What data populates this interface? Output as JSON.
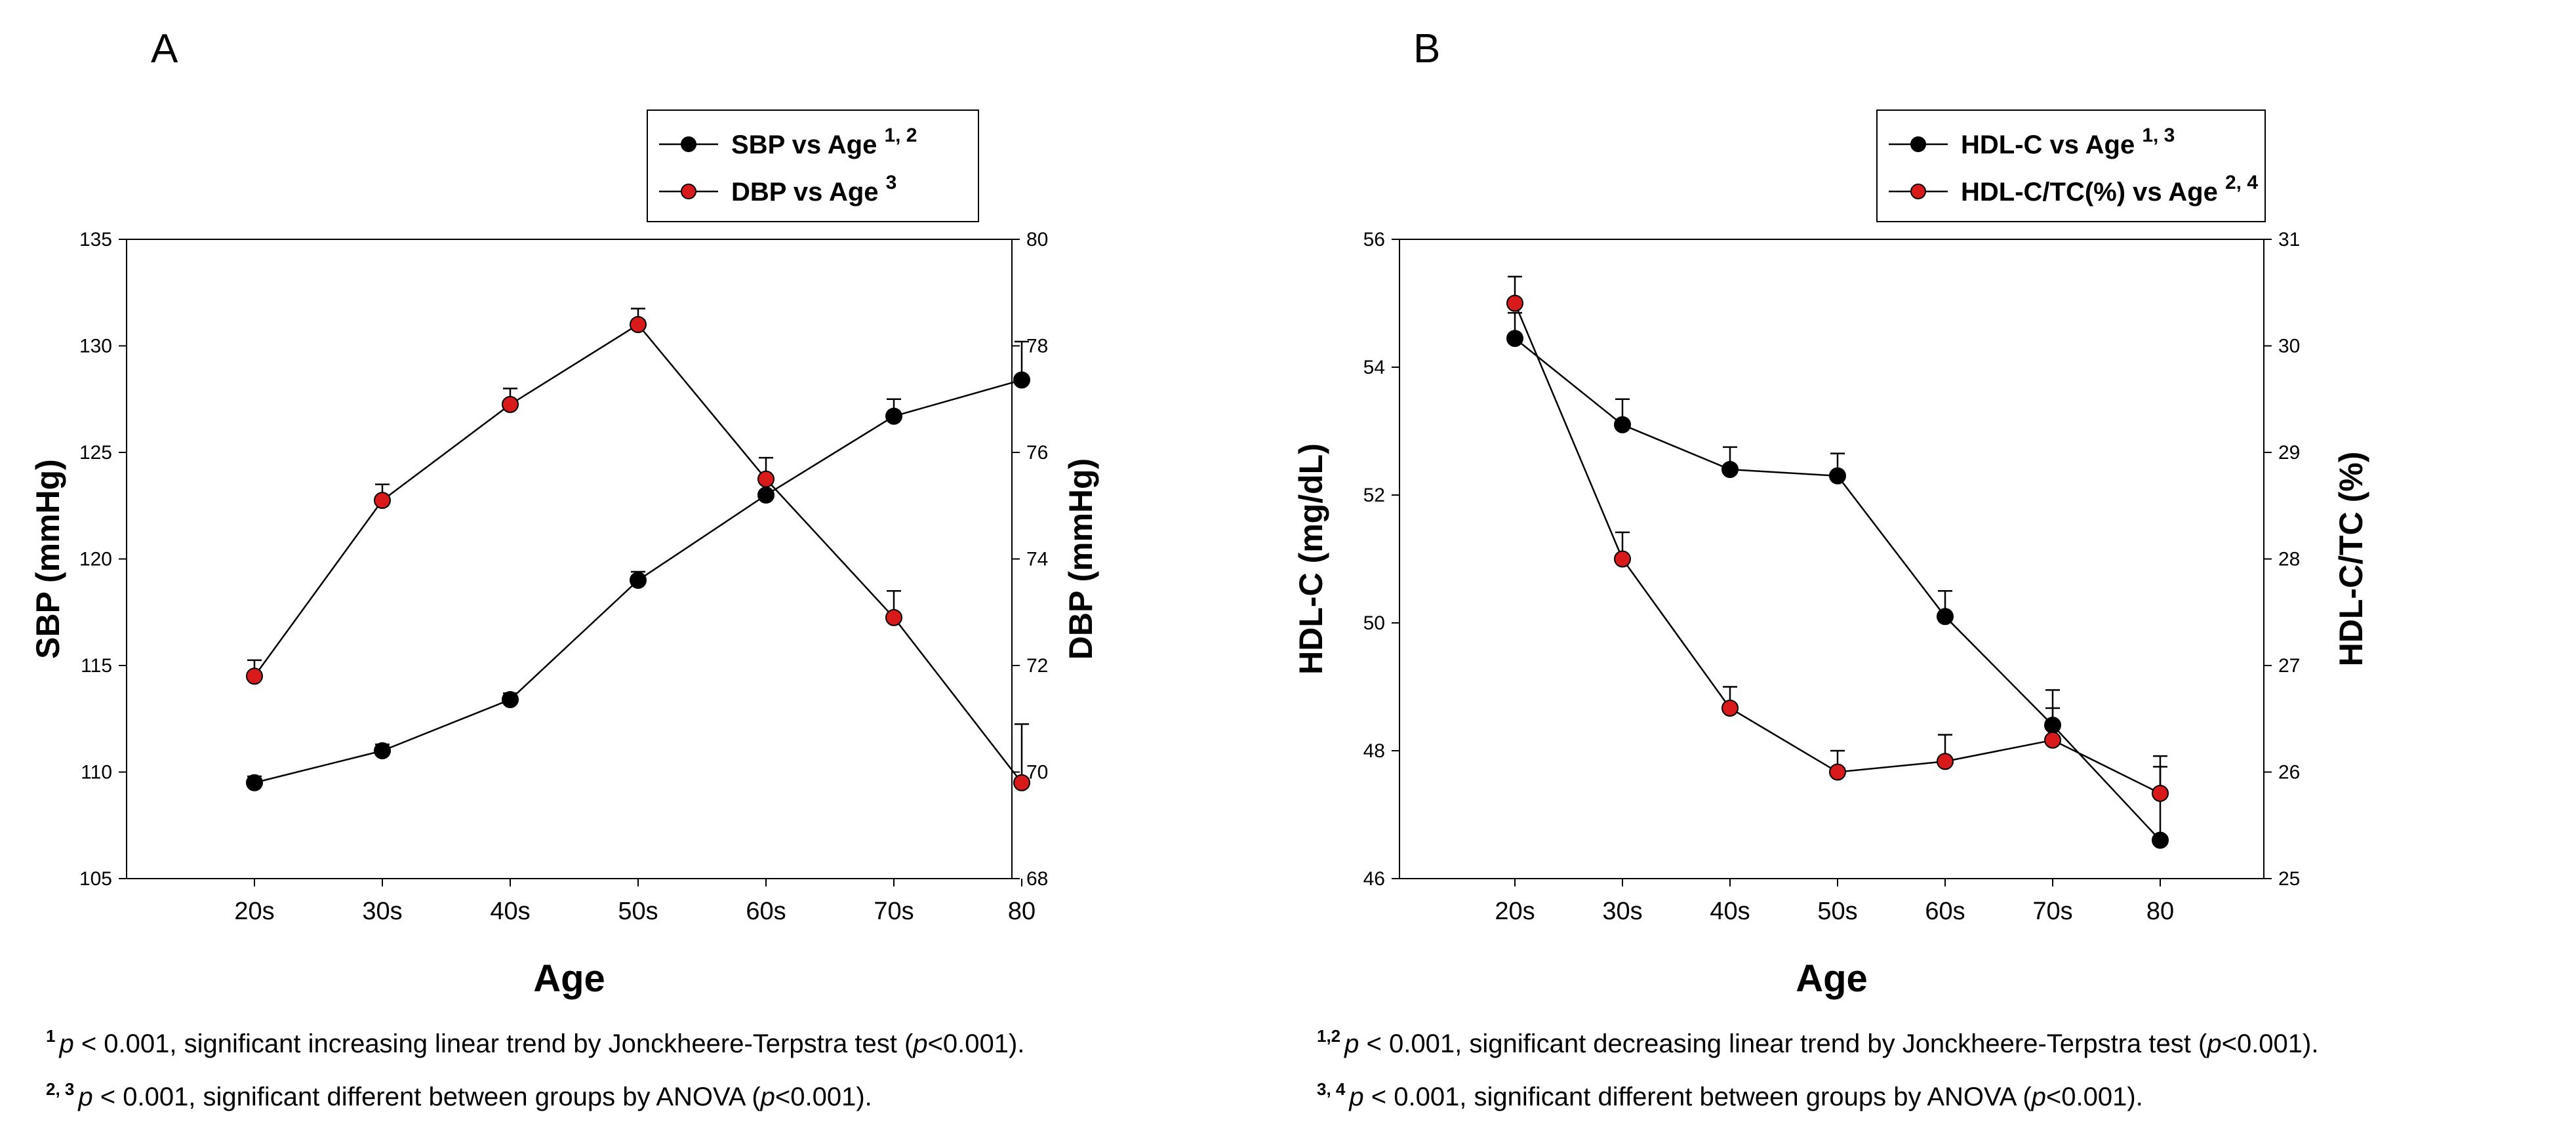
{
  "chart_data": [
    {
      "panel_label": "A",
      "type": "line",
      "categories": [
        "20s",
        "30s",
        "40s",
        "50s",
        "60s",
        "70s",
        "80"
      ],
      "xlabel": "Age",
      "left_axis": {
        "label": "SBP (mmHg)",
        "range": [
          105,
          135
        ],
        "ticks": [
          "105",
          "110",
          "115",
          "120",
          "125",
          "130",
          "135"
        ]
      },
      "right_axis": {
        "label": "DBP (mmHg)",
        "range": [
          68,
          80
        ],
        "ticks": [
          "68",
          "70",
          "72",
          "74",
          "76",
          "78",
          "80"
        ]
      },
      "series": [
        {
          "name": "SBP vs Age",
          "sup": "1, 2",
          "axis": "left",
          "color": "#000000",
          "values": [
            109.5,
            111.0,
            113.4,
            119.0,
            123.0,
            126.7,
            128.4
          ],
          "errors": [
            0.3,
            0.3,
            0.3,
            0.4,
            0.6,
            0.8,
            1.8
          ]
        },
        {
          "name": "DBP vs Age",
          "sup": "3",
          "axis": "right",
          "color": "#d91a1a",
          "values": [
            71.8,
            75.1,
            76.9,
            78.4,
            75.5,
            72.9,
            69.8
          ],
          "errors": [
            0.3,
            0.3,
            0.3,
            0.3,
            0.4,
            0.5,
            1.1
          ]
        }
      ],
      "footnotes": [
        {
          "sup": "1",
          "pre": " < 0.001, significant increasing linear trend by Jonckheere-Terpstra test (",
          "post": "<0.001)."
        },
        {
          "sup": "2, 3",
          "pre": " < 0.001, significant different between groups by ANOVA (",
          "post": "<0.001)."
        }
      ]
    },
    {
      "panel_label": "B",
      "type": "line",
      "categories": [
        "20s",
        "30s",
        "40s",
        "50s",
        "60s",
        "70s",
        "80"
      ],
      "xlabel": "Age",
      "left_axis": {
        "label": "HDL-C (mg/dL)",
        "range": [
          46,
          56
        ],
        "ticks": [
          "46",
          "48",
          "50",
          "52",
          "54",
          "56"
        ]
      },
      "right_axis": {
        "label": "HDL-C/TC (%)",
        "range": [
          25,
          31
        ],
        "ticks": [
          "25",
          "26",
          "27",
          "28",
          "29",
          "30",
          "31"
        ]
      },
      "series": [
        {
          "name": "HDL-C vs Age",
          "sup": "1, 3",
          "axis": "left",
          "color": "#000000",
          "values": [
            54.45,
            53.1,
            52.4,
            52.3,
            50.1,
            48.4,
            46.6
          ],
          "errors": [
            0.4,
            0.4,
            0.35,
            0.35,
            0.4,
            0.55,
            1.15
          ]
        },
        {
          "name": "HDL-C/TC(%) vs Age",
          "sup": "2, 4",
          "axis": "right",
          "color": "#d91a1a",
          "values": [
            30.4,
            28.0,
            26.6,
            26.0,
            26.1,
            26.3,
            25.8
          ],
          "errors": [
            0.25,
            0.25,
            0.2,
            0.2,
            0.25,
            0.3,
            0.35
          ]
        }
      ],
      "footnotes": [
        {
          "sup": "1,2",
          "pre": " < 0.001, significant decreasing linear trend by Jonckheere-Terpstra test (",
          "post": "<0.001)."
        },
        {
          "sup": "3, 4",
          "pre": " < 0.001, significant different between groups by ANOVA (",
          "post": "<0.001)."
        }
      ]
    }
  ],
  "p_symbol": "p"
}
